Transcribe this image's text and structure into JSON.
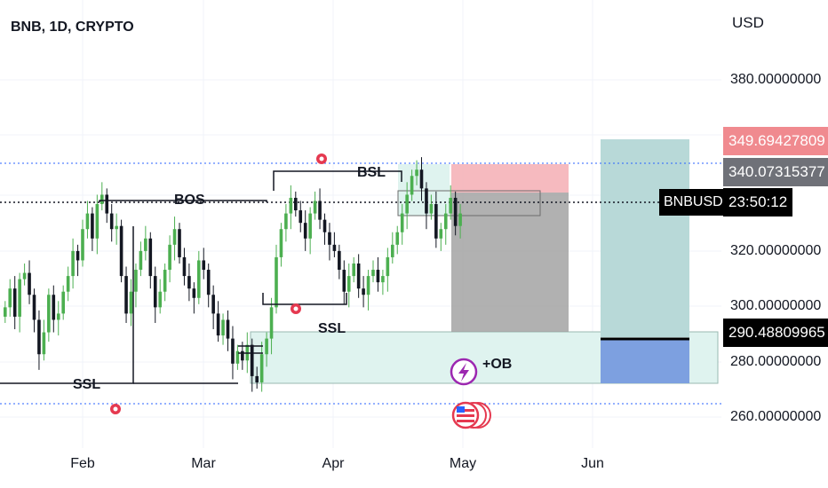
{
  "title": "BNB, 1D, CRYPTO",
  "currency": "USD",
  "colors": {
    "up": "#26a69a",
    "down": "#ef5350",
    "candle_up": "#4caf50",
    "candle_down": "#131722",
    "zone": "#dff3ef",
    "stop": "#f4aeb4",
    "loss": "#9e9e9e",
    "target": "#b8d9d8",
    "entry_fill": "#7da0e0"
  },
  "axes": {
    "y_ticks": [
      "380.00000000",
      "320.00000000",
      "300.00000000",
      "280.00000000",
      "260.00000000"
    ],
    "x_ticks": [
      "Feb",
      "Mar",
      "Apr",
      "May",
      "Jun"
    ]
  },
  "price_labels": {
    "stop": "349.69427809",
    "level": "340.07315377",
    "symbol": "BNBUSD",
    "countdown": "23:50:12",
    "entry": "290.48809965"
  },
  "annotations": {
    "bos": "BOS",
    "bsl": "BSL",
    "ssl_left": "SSL",
    "ssl_mid": "SSL",
    "ob": "+OB"
  },
  "chart_data": {
    "type": "candlestick",
    "title": "BNB, 1D, CRYPTO",
    "ylabel": "USD",
    "ylim": [
      255,
      392
    ],
    "x_ticks": [
      "Feb",
      "Mar",
      "Apr",
      "May",
      "Jun"
    ],
    "levels": {
      "stop": 349.69427809,
      "level": 340.07315377,
      "entry": 290.48809965
    },
    "series": [
      {
        "name": "BNBUSD",
        "close": [
          300,
          306,
          297,
          309,
          311,
          304,
          296,
          285,
          292,
          304,
          296,
          298,
          305,
          310,
          318,
          315,
          325,
          330,
          322,
          333,
          336,
          330,
          325,
          326,
          310,
          298,
          305,
          312,
          318,
          322,
          310,
          300,
          305,
          312,
          320,
          325,
          316,
          310,
          306,
          303,
          315,
          312,
          304,
          298,
          291,
          296,
          290,
          282,
          286,
          283,
          288,
          278,
          276,
          285,
          290,
          300,
          316,
          325,
          330,
          335,
          331,
          327,
          322,
          330,
          334,
          328,
          324,
          320,
          318,
          312,
          305,
          310,
          314,
          306,
          304,
          310,
          312,
          308,
          310,
          316,
          320,
          324,
          330,
          336,
          342,
          344,
          338,
          330,
          333,
          322,
          325,
          330,
          335,
          326,
          330
        ]
      }
    ]
  }
}
